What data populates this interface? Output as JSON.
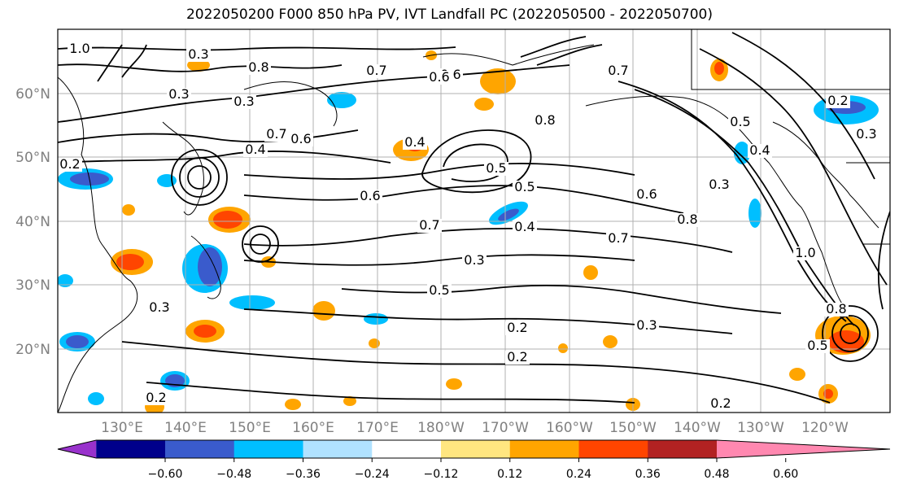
{
  "title": "2022050200 F000 850 hPa PV, IVT Landfall PC (2022050500 - 2022050700)",
  "lat_labels": [
    "60°N",
    "50°N",
    "40°N",
    "30°N",
    "20°N"
  ],
  "lon_labels": [
    "130°E",
    "140°E",
    "150°E",
    "160°E",
    "170°E",
    "180°W",
    "170°W",
    "160°W",
    "150°W",
    "140°W",
    "130°W",
    "120°W"
  ],
  "colorbar": {
    "ticks": [
      "−0.60",
      "−0.48",
      "−0.36",
      "−0.24",
      "−0.12",
      "0.12",
      "0.24",
      "0.36",
      "0.48",
      "0.60"
    ],
    "colors": [
      "#9932cc",
      "#00008b",
      "#3a5bcc",
      "#00bfff",
      "#b0e2ff",
      "#ffffff",
      "#ffe680",
      "#ffa500",
      "#ff4500",
      "#b22222",
      "#ff88b0"
    ]
  },
  "contour_labels": [
    "1.0",
    "0.3",
    "0.3",
    "0.8",
    "0.7",
    "0.6",
    "0.7",
    "0.6",
    "0.4",
    "0.2",
    "0.4",
    "0.8",
    "0.5",
    "0.4",
    "0.6",
    "0.7",
    "0.5",
    "0.6",
    "0.8",
    "0.4",
    "0.7",
    "0.3",
    "0.5",
    "0.3",
    "0.3",
    "0.2",
    "0.2",
    "0.3",
    "0.2",
    "0.8",
    "1.0",
    "0.2",
    "0.3",
    "0.5",
    "0.3",
    "0.7",
    "0.6",
    "0.2",
    "0.5"
  ]
}
